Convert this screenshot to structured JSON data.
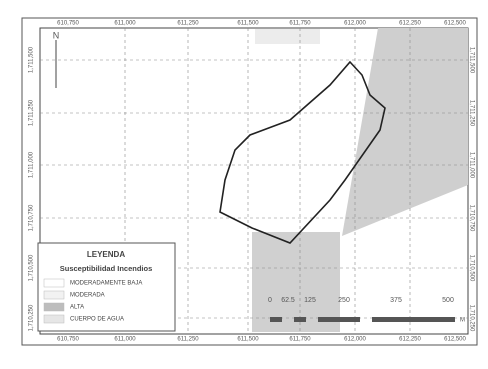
{
  "top_coords": [
    "610,750",
    "611,000",
    "611,250",
    "611,500",
    "611,750",
    "612,000",
    "612,250",
    "612,500"
  ],
  "bottom_coords": [
    "610,750",
    "611,000",
    "611,250",
    "611,500",
    "611,750",
    "612,000",
    "612,250",
    "612,500"
  ],
  "left_coords": [
    "1,711,500",
    "1,711,250",
    "1,711,000",
    "1,710,750",
    "1,710,500",
    "1,710,250"
  ],
  "right_coords": [
    "1,711,500",
    "1,711,250",
    "1,711,000",
    "1,710,750",
    "1,710,500",
    "1,710,250"
  ],
  "north": "N",
  "legend": {
    "title": "LEYENDA",
    "subtitle": "Susceptibilidad Incendios",
    "items": [
      "MODERADAMENTE BAJA",
      "MODERADA",
      "ALTA",
      "CUERPO DE AGUA"
    ]
  },
  "scale": {
    "labels": [
      "0",
      "62.5",
      "125",
      "250",
      "375",
      "500"
    ],
    "unit": "M"
  }
}
